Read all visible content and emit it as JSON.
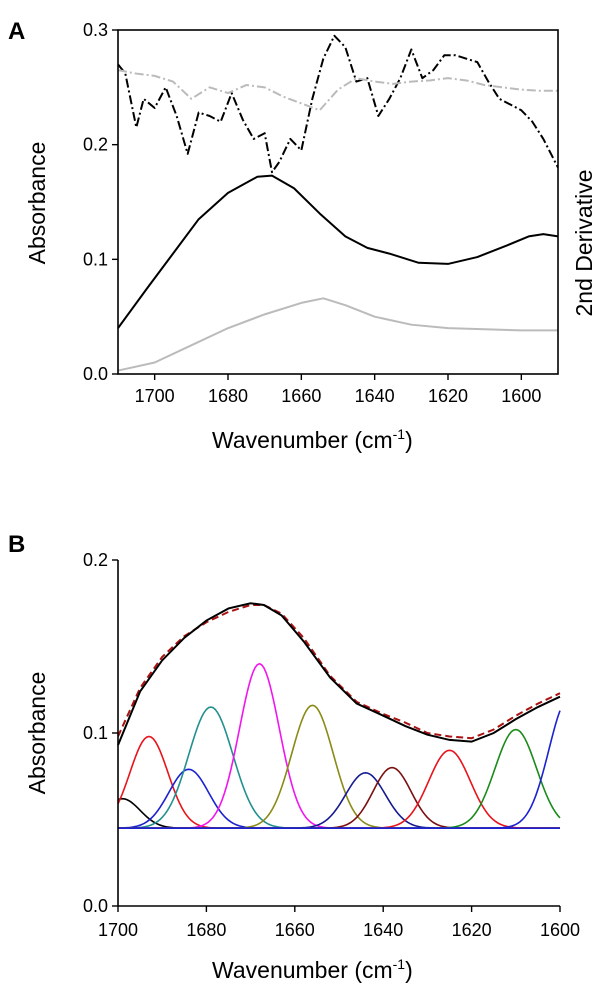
{
  "chart_data": [
    {
      "panel": "A",
      "type": "line",
      "xlabel": "Wavenumber (cm",
      "xlabel_sup": "-1",
      "xlabel_end": ")",
      "ylabel": "Absorbance",
      "y2label": "2nd Derivative",
      "xlim": [
        1710,
        1590
      ],
      "ylim": [
        0.0,
        0.3
      ],
      "x_ticks": [
        1700,
        1680,
        1660,
        1640,
        1620,
        1600
      ],
      "y_ticks": [
        0.0,
        0.1,
        0.2,
        0.3
      ],
      "y_tick_labels": [
        "0.0",
        "0.1",
        "0.2",
        "0.3"
      ],
      "grid": false,
      "series": [
        {
          "color": "#000000",
          "dash": "solid",
          "x": [
            1710,
            1702,
            1695,
            1688,
            1680,
            1672,
            1668,
            1662,
            1655,
            1648,
            1642,
            1636,
            1628,
            1620,
            1612,
            1604,
            1598,
            1594,
            1590
          ],
          "y": [
            0.04,
            0.075,
            0.105,
            0.135,
            0.158,
            0.172,
            0.173,
            0.162,
            0.14,
            0.12,
            0.11,
            0.105,
            0.097,
            0.096,
            0.102,
            0.112,
            0.12,
            0.122,
            0.12
          ]
        },
        {
          "color": "#bbbbbb",
          "dash": "solid",
          "x": [
            1710,
            1700,
            1690,
            1680,
            1670,
            1660,
            1654,
            1648,
            1640,
            1630,
            1620,
            1610,
            1600,
            1590
          ],
          "y": [
            0.003,
            0.01,
            0.025,
            0.04,
            0.052,
            0.062,
            0.066,
            0.06,
            0.05,
            0.043,
            0.04,
            0.039,
            0.038,
            0.038
          ]
        },
        {
          "color": "#000000",
          "dash": "dashdot",
          "x": [
            1710,
            1708,
            1705,
            1703,
            1700,
            1697,
            1694,
            1691,
            1688,
            1685,
            1682,
            1679,
            1676,
            1673,
            1670,
            1668,
            1666,
            1663,
            1660,
            1657,
            1654,
            1651,
            1648,
            1645,
            1642,
            1639,
            1636,
            1633,
            1630,
            1627,
            1624,
            1621,
            1618,
            1615,
            1612,
            1609,
            1606,
            1603,
            1600,
            1597,
            1594,
            1590
          ],
          "y": [
            0.27,
            0.262,
            0.215,
            0.24,
            0.232,
            0.25,
            0.225,
            0.192,
            0.228,
            0.225,
            0.22,
            0.245,
            0.222,
            0.205,
            0.21,
            0.176,
            0.185,
            0.205,
            0.195,
            0.24,
            0.275,
            0.295,
            0.285,
            0.255,
            0.258,
            0.225,
            0.24,
            0.258,
            0.283,
            0.258,
            0.265,
            0.278,
            0.278,
            0.275,
            0.272,
            0.255,
            0.24,
            0.235,
            0.23,
            0.22,
            0.205,
            0.18
          ]
        },
        {
          "color": "#bbbbbb",
          "dash": "dashdot",
          "x": [
            1710,
            1705,
            1700,
            1695,
            1690,
            1685,
            1680,
            1675,
            1670,
            1665,
            1660,
            1655,
            1650,
            1645,
            1640,
            1635,
            1630,
            1625,
            1620,
            1615,
            1610,
            1605,
            1600,
            1595,
            1590
          ],
          "y": [
            0.265,
            0.262,
            0.26,
            0.255,
            0.24,
            0.25,
            0.245,
            0.252,
            0.25,
            0.242,
            0.236,
            0.23,
            0.248,
            0.258,
            0.255,
            0.253,
            0.255,
            0.256,
            0.258,
            0.256,
            0.252,
            0.25,
            0.248,
            0.247,
            0.247
          ]
        }
      ]
    },
    {
      "panel": "B",
      "type": "line",
      "xlabel": "Wavenumber (cm",
      "xlabel_sup": "-1",
      "xlabel_end": ")",
      "ylabel": "Absorbance",
      "xlim": [
        1700,
        1600
      ],
      "ylim": [
        0.0,
        0.2
      ],
      "x_ticks": [
        1700,
        1680,
        1660,
        1640,
        1620,
        1600
      ],
      "y_ticks": [
        0.0,
        0.1,
        0.2
      ],
      "y_tick_labels": [
        "0.0",
        "0.1",
        "0.2"
      ],
      "grid": false,
      "baseline": 0.045,
      "measured": {
        "color": "#000000",
        "x": [
          1700,
          1695,
          1690,
          1685,
          1680,
          1675,
          1670,
          1667,
          1663,
          1658,
          1652,
          1646,
          1640,
          1635,
          1630,
          1625,
          1620,
          1615,
          1610,
          1605,
          1600
        ],
        "y": [
          0.093,
          0.124,
          0.142,
          0.155,
          0.165,
          0.172,
          0.175,
          0.174,
          0.168,
          0.153,
          0.132,
          0.117,
          0.11,
          0.104,
          0.099,
          0.096,
          0.095,
          0.1,
          0.108,
          0.115,
          0.121
        ]
      },
      "fit": {
        "color": "#aa1111",
        "x": [
          1700,
          1695,
          1690,
          1685,
          1680,
          1675,
          1670,
          1667,
          1663,
          1658,
          1652,
          1646,
          1640,
          1635,
          1630,
          1625,
          1620,
          1615,
          1610,
          1605,
          1600
        ],
        "y": [
          0.098,
          0.126,
          0.144,
          0.156,
          0.164,
          0.17,
          0.174,
          0.174,
          0.169,
          0.155,
          0.133,
          0.118,
          0.111,
          0.106,
          0.1,
          0.098,
          0.097,
          0.102,
          0.11,
          0.117,
          0.123
        ]
      },
      "components": [
        {
          "center": 1699,
          "height": 0.062,
          "sigma": 4.0,
          "color": "#000000"
        },
        {
          "center": 1693,
          "height": 0.098,
          "sigma": 4.3,
          "color": "#e8141c"
        },
        {
          "center": 1684,
          "height": 0.079,
          "sigma": 4.5,
          "color": "#1c22d0"
        },
        {
          "center": 1679,
          "height": 0.115,
          "sigma": 5.0,
          "color": "#22908e"
        },
        {
          "center": 1668,
          "height": 0.14,
          "sigma": 4.5,
          "color": "#f016ee"
        },
        {
          "center": 1656,
          "height": 0.116,
          "sigma": 4.7,
          "color": "#8a8a16"
        },
        {
          "center": 1644,
          "height": 0.077,
          "sigma": 4.5,
          "color": "#161a90"
        },
        {
          "center": 1638,
          "height": 0.08,
          "sigma": 4.3,
          "color": "#7a1010"
        },
        {
          "center": 1625,
          "height": 0.09,
          "sigma": 4.7,
          "color": "#e8141c"
        },
        {
          "center": 1610,
          "height": 0.102,
          "sigma": 4.7,
          "color": "#1a8a1a"
        },
        {
          "center": 1598,
          "height": 0.12,
          "sigma": 4.5,
          "color": "#1c22d0"
        }
      ]
    }
  ]
}
